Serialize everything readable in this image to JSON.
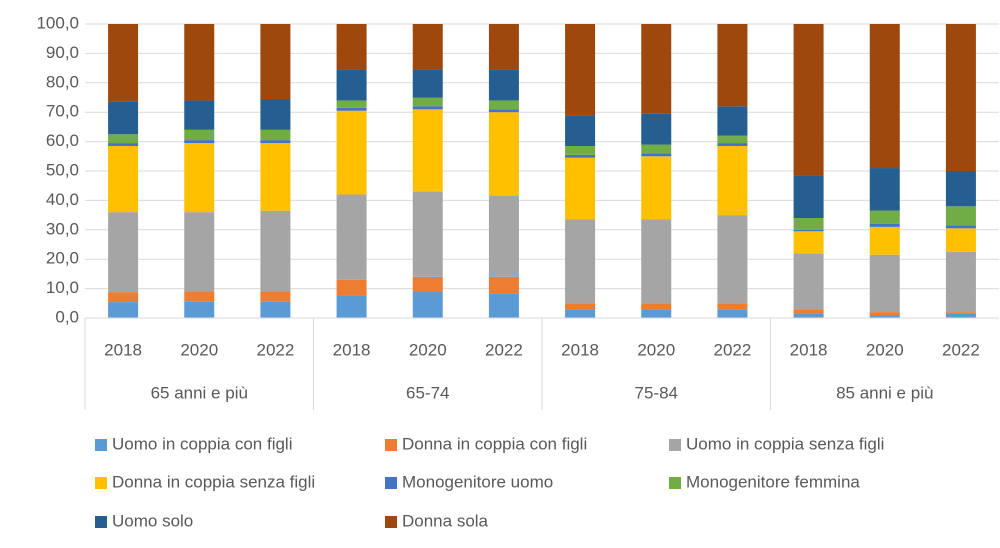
{
  "chart_data": {
    "type": "stacked_bar",
    "categories": [
      "2018",
      "2020",
      "2022",
      "2018",
      "2020",
      "2022",
      "2018",
      "2020",
      "2022",
      "2018",
      "2020",
      "2022"
    ],
    "groups": [
      "65 anni e più",
      "65-74",
      "75-84",
      "85 anni e più"
    ],
    "ylim": [
      0,
      100
    ],
    "yticks": [
      {
        "value": 0,
        "label": "0,0"
      },
      {
        "value": 10,
        "label": "10,0"
      },
      {
        "value": 20,
        "label": "20,0"
      },
      {
        "value": 30,
        "label": "30,0"
      },
      {
        "value": 40,
        "label": "40,0"
      },
      {
        "value": 50,
        "label": "50,0"
      },
      {
        "value": 60,
        "label": "60,0"
      },
      {
        "value": 70,
        "label": "70,0"
      },
      {
        "value": 80,
        "label": "80,0"
      },
      {
        "value": 90,
        "label": "90,0"
      },
      {
        "value": 100,
        "label": "100,0"
      }
    ],
    "grid": true,
    "legend": "bottom",
    "series": [
      {
        "name": "Uomo in coppia con figli",
        "color": "#5b9bd5",
        "values": [
          5.4,
          5.5,
          5.5,
          7.5,
          9,
          8.3,
          3,
          3,
          3,
          1.5,
          1,
          1.5
        ]
      },
      {
        "name": "Donna in coppia con figli",
        "color": "#ed7d31",
        "values": [
          3.4,
          3.5,
          3.5,
          5.5,
          5,
          5.7,
          2,
          2,
          2,
          1.5,
          1,
          0.5
        ]
      },
      {
        "name": "Uomo in coppia senza figli",
        "color": "#a5a5a5",
        "values": [
          27.2,
          27,
          27.5,
          29,
          29,
          27.5,
          28.5,
          28.5,
          30,
          19,
          19.5,
          20.5
        ]
      },
      {
        "name": "Donna in coppia senza figli",
        "color": "#ffc000",
        "values": [
          22.5,
          23.5,
          23,
          28.5,
          28,
          28.5,
          21,
          21.5,
          23.5,
          7.5,
          9.5,
          8
        ]
      },
      {
        "name": "Monogenitore uomo",
        "color": "#4472c4",
        "values": [
          1,
          1,
          1,
          1,
          1,
          1,
          1,
          1,
          1,
          0.5,
          1,
          1
        ]
      },
      {
        "name": "Monogenitore femmina",
        "color": "#70ad47",
        "values": [
          3,
          3.5,
          3.5,
          2.5,
          3,
          3,
          3,
          3,
          2.5,
          4,
          4.5,
          6.5
        ]
      },
      {
        "name": "Uomo solo",
        "color": "#255e91",
        "values": [
          11,
          10,
          10.5,
          10.5,
          9.5,
          10.5,
          10.5,
          10.5,
          10,
          14.5,
          14.5,
          12
        ]
      },
      {
        "name": "Donna sola",
        "color": "#9e480e",
        "values": [
          26.5,
          26,
          25.5,
          15.5,
          15.5,
          15.5,
          31,
          30.5,
          28,
          51.5,
          49,
          50
        ]
      }
    ]
  }
}
